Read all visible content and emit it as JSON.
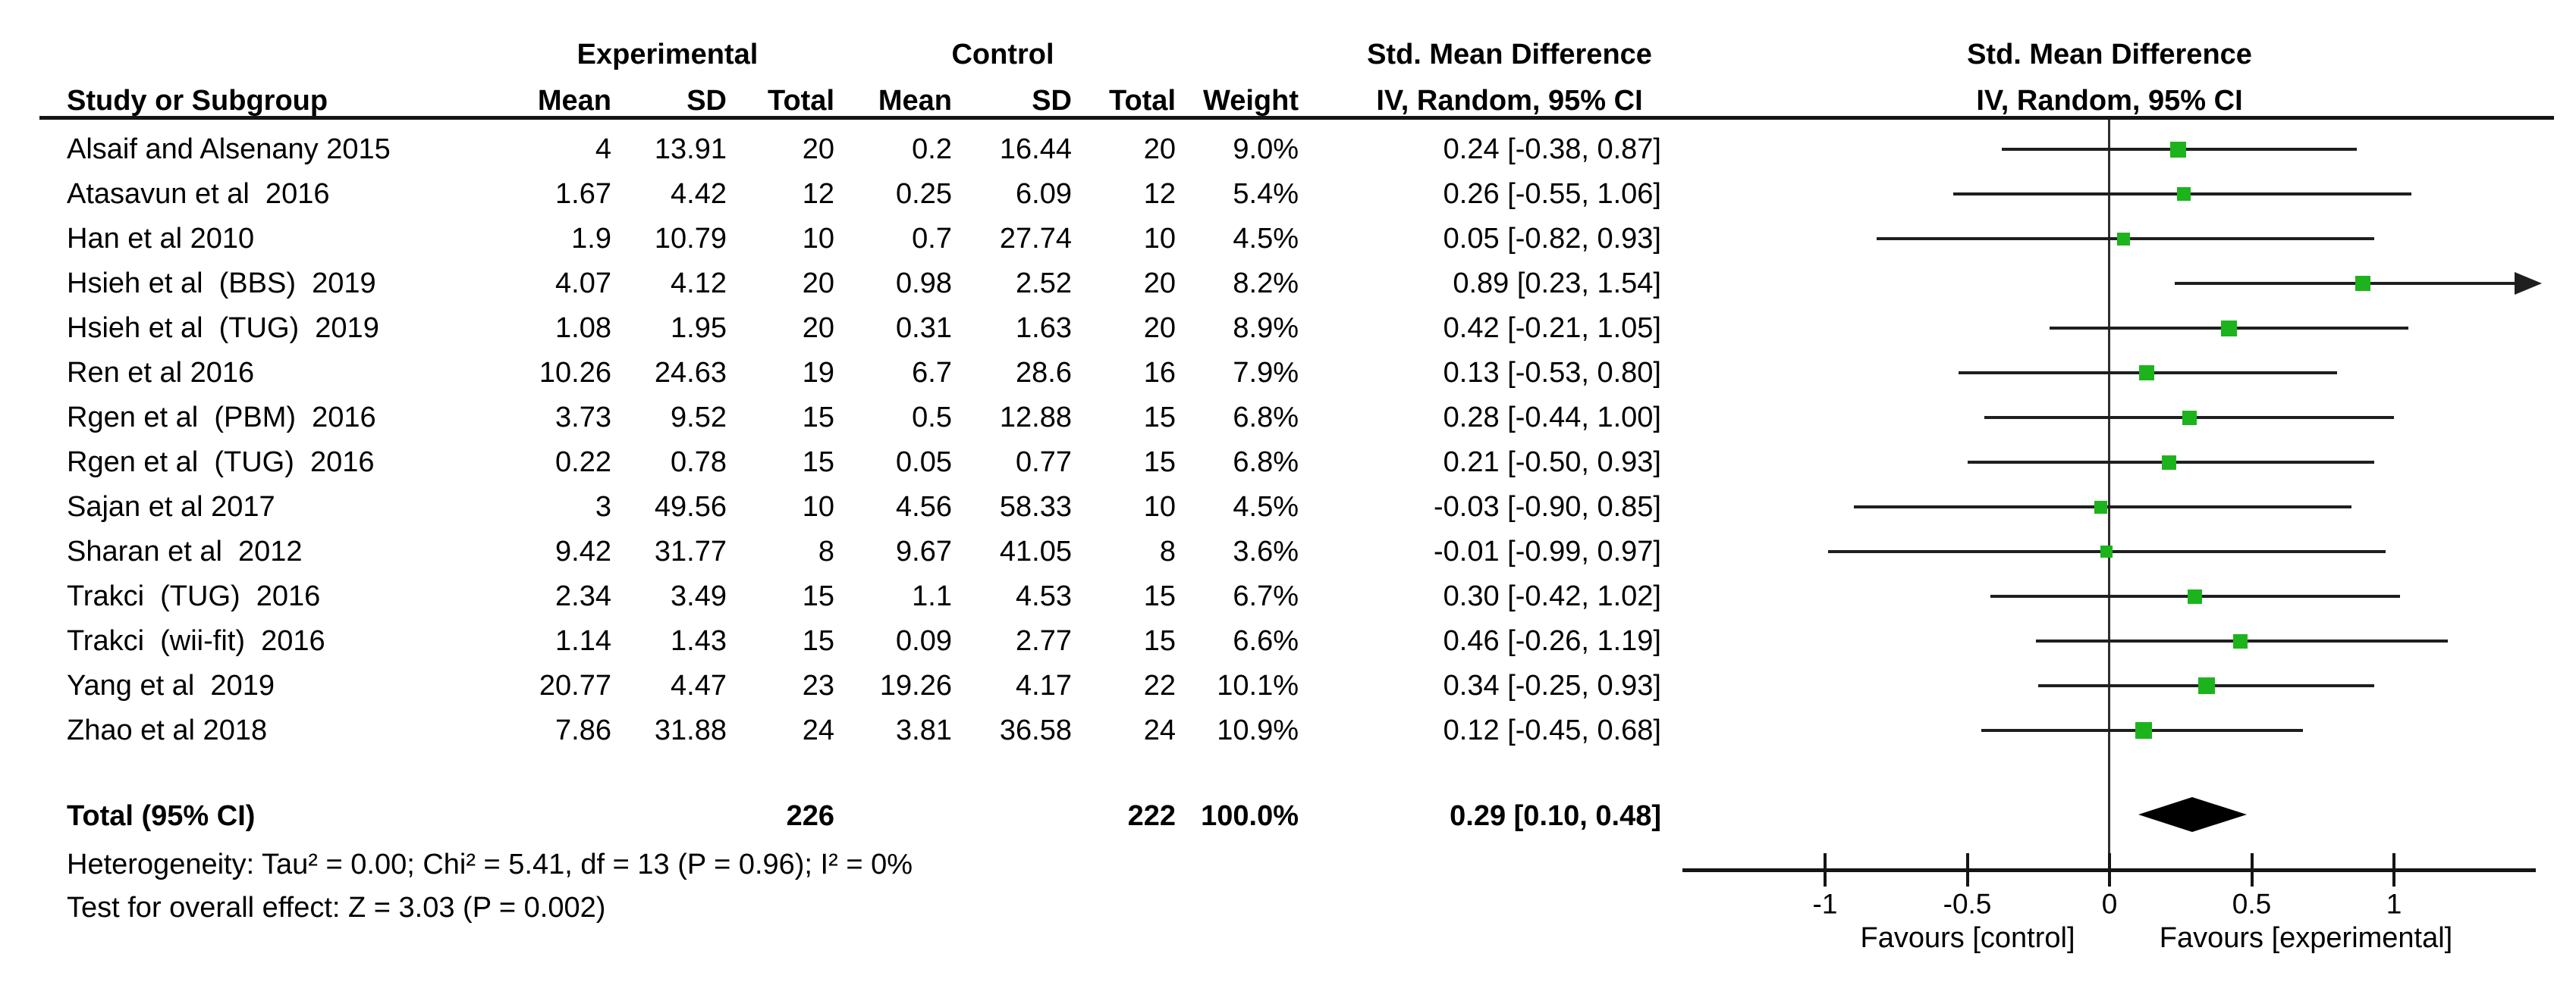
{
  "headers": {
    "experimental": "Experimental",
    "control": "Control",
    "smd_table": "Std. Mean Difference",
    "smd_plot": "Std. Mean Difference",
    "study": "Study or Subgroup",
    "mean": "Mean",
    "sd": "SD",
    "total": "Total",
    "weight": "Weight",
    "method_table": "IV, Random, 95% CI",
    "method_plot": "IV, Random, 95% CI"
  },
  "chart_data": {
    "type": "scatter",
    "subtype": "forest_plot",
    "title": "Std. Mean Difference, IV, Random, 95% CI",
    "xlabel_left": "Favours [control]",
    "xlabel_right": "Favours [experimental]",
    "x_axis": {
      "xlim": [
        -1.5,
        1.5
      ],
      "ticks": [
        -1,
        -0.5,
        0,
        0.5,
        1
      ],
      "tick_labels": [
        "-1",
        "-0.5",
        "0",
        "0.5",
        "1"
      ],
      "grid": false
    },
    "studies": [
      {
        "name": "Alsaif and Alsenany 2015",
        "mean_e": "4",
        "sd_e": "13.91",
        "n_e": "20",
        "mean_c": "0.2",
        "sd_c": "16.44",
        "n_c": "20",
        "weight_label": "9.0%",
        "ci_label": "0.24 [-0.38, 0.87]",
        "est": 0.24,
        "lo": -0.38,
        "hi": 0.87,
        "weight": 9.0
      },
      {
        "name": "Atasavun et al  2016",
        "mean_e": "1.67",
        "sd_e": "4.42",
        "n_e": "12",
        "mean_c": "0.25",
        "sd_c": "6.09",
        "n_c": "12",
        "weight_label": "5.4%",
        "ci_label": "0.26 [-0.55, 1.06]",
        "est": 0.26,
        "lo": -0.55,
        "hi": 1.06,
        "weight": 5.4
      },
      {
        "name": "Han et al 2010",
        "mean_e": "1.9",
        "sd_e": "10.79",
        "n_e": "10",
        "mean_c": "0.7",
        "sd_c": "27.74",
        "n_c": "10",
        "weight_label": "4.5%",
        "ci_label": "0.05 [-0.82, 0.93]",
        "est": 0.05,
        "lo": -0.82,
        "hi": 0.93,
        "weight": 4.5
      },
      {
        "name": "Hsieh et al  (BBS)  2019",
        "mean_e": "4.07",
        "sd_e": "4.12",
        "n_e": "20",
        "mean_c": "0.98",
        "sd_c": "2.52",
        "n_c": "20",
        "weight_label": "8.2%",
        "ci_label": "0.89 [0.23, 1.54]",
        "est": 0.89,
        "lo": 0.23,
        "hi": 1.54,
        "weight": 8.2
      },
      {
        "name": "Hsieh et al  (TUG)  2019",
        "mean_e": "1.08",
        "sd_e": "1.95",
        "n_e": "20",
        "mean_c": "0.31",
        "sd_c": "1.63",
        "n_c": "20",
        "weight_label": "8.9%",
        "ci_label": "0.42 [-0.21, 1.05]",
        "est": 0.42,
        "lo": -0.21,
        "hi": 1.05,
        "weight": 8.9
      },
      {
        "name": "Ren et al 2016",
        "mean_e": "10.26",
        "sd_e": "24.63",
        "n_e": "19",
        "mean_c": "6.7",
        "sd_c": "28.6",
        "n_c": "16",
        "weight_label": "7.9%",
        "ci_label": "0.13 [-0.53, 0.80]",
        "est": 0.13,
        "lo": -0.53,
        "hi": 0.8,
        "weight": 7.9
      },
      {
        "name": "Rgen et al  (PBM)  2016",
        "mean_e": "3.73",
        "sd_e": "9.52",
        "n_e": "15",
        "mean_c": "0.5",
        "sd_c": "12.88",
        "n_c": "15",
        "weight_label": "6.8%",
        "ci_label": "0.28 [-0.44, 1.00]",
        "est": 0.28,
        "lo": -0.44,
        "hi": 1.0,
        "weight": 6.8
      },
      {
        "name": "Rgen et al  (TUG)  2016",
        "mean_e": "0.22",
        "sd_e": "0.78",
        "n_e": "15",
        "mean_c": "0.05",
        "sd_c": "0.77",
        "n_c": "15",
        "weight_label": "6.8%",
        "ci_label": "0.21 [-0.50, 0.93]",
        "est": 0.21,
        "lo": -0.5,
        "hi": 0.93,
        "weight": 6.8
      },
      {
        "name": "Sajan et al 2017",
        "mean_e": "3",
        "sd_e": "49.56",
        "n_e": "10",
        "mean_c": "4.56",
        "sd_c": "58.33",
        "n_c": "10",
        "weight_label": "4.5%",
        "ci_label": "-0.03 [-0.90, 0.85]",
        "est": -0.03,
        "lo": -0.9,
        "hi": 0.85,
        "weight": 4.5
      },
      {
        "name": "Sharan et al  2012",
        "mean_e": "9.42",
        "sd_e": "31.77",
        "n_e": "8",
        "mean_c": "9.67",
        "sd_c": "41.05",
        "n_c": "8",
        "weight_label": "3.6%",
        "ci_label": "-0.01 [-0.99, 0.97]",
        "est": -0.01,
        "lo": -0.99,
        "hi": 0.97,
        "weight": 3.6
      },
      {
        "name": "Trakci  (TUG)  2016",
        "mean_e": "2.34",
        "sd_e": "3.49",
        "n_e": "15",
        "mean_c": "1.1",
        "sd_c": "4.53",
        "n_c": "15",
        "weight_label": "6.7%",
        "ci_label": "0.30 [-0.42, 1.02]",
        "est": 0.3,
        "lo": -0.42,
        "hi": 1.02,
        "weight": 6.7
      },
      {
        "name": "Trakci  (wii-fit)  2016",
        "mean_e": "1.14",
        "sd_e": "1.43",
        "n_e": "15",
        "mean_c": "0.09",
        "sd_c": "2.77",
        "n_c": "15",
        "weight_label": "6.6%",
        "ci_label": "0.46 [-0.26, 1.19]",
        "est": 0.46,
        "lo": -0.26,
        "hi": 1.19,
        "weight": 6.6
      },
      {
        "name": "Yang et al  2019",
        "mean_e": "20.77",
        "sd_e": "4.47",
        "n_e": "23",
        "mean_c": "19.26",
        "sd_c": "4.17",
        "n_c": "22",
        "weight_label": "10.1%",
        "ci_label": "0.34 [-0.25, 0.93]",
        "est": 0.34,
        "lo": -0.25,
        "hi": 0.93,
        "weight": 10.1
      },
      {
        "name": "Zhao et al 2018",
        "mean_e": "7.86",
        "sd_e": "31.88",
        "n_e": "24",
        "mean_c": "3.81",
        "sd_c": "36.58",
        "n_c": "24",
        "weight_label": "10.9%",
        "ci_label": "0.12 [-0.45, 0.68]",
        "est": 0.12,
        "lo": -0.45,
        "hi": 0.68,
        "weight": 10.9
      }
    ],
    "total": {
      "label": "Total (95% CI)",
      "n_e": "226",
      "n_c": "222",
      "weight_label": "100.0%",
      "ci_label": "0.29 [0.10, 0.48]",
      "est": 0.29,
      "lo": 0.1,
      "hi": 0.48
    },
    "footnotes": {
      "heterogeneity": "Heterogeneity: Tau² = 0.00; Chi² = 5.41, df = 13 (P = 0.96); I² = 0%",
      "overall_effect": "Test for overall effect: Z = 3.03 (P = 0.002)"
    },
    "colors": {
      "marker_green": "#1db31d",
      "ci_line": "#1f1f1f",
      "diamond": "#000000",
      "axis": "#151515",
      "text": "#000000"
    }
  }
}
